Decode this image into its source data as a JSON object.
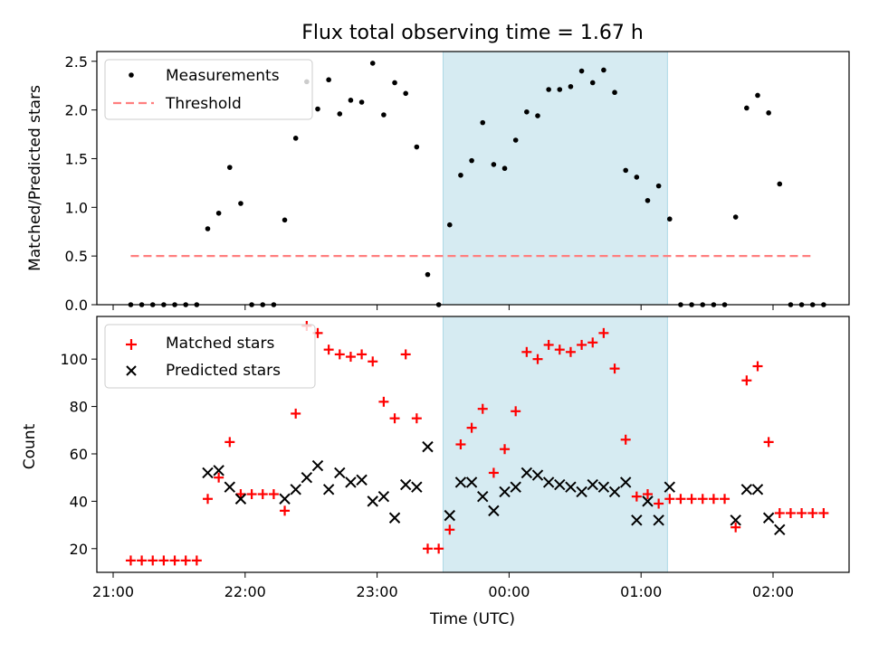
{
  "chart_data": [
    {
      "type": "scatter",
      "title": "Flux total observing time = 1.67 h",
      "xlabel": "",
      "ylabel": "Matched/Predicted stars",
      "ylim": [
        0,
        2.6
      ],
      "yticks": [
        "0.0",
        "0.5",
        "1.0",
        "1.5",
        "2.0",
        "2.5"
      ],
      "shaded_span": {
        "start": "23:30",
        "end": "01:12",
        "color": "#add8e6"
      },
      "legend": {
        "placement": "top-left",
        "entries": [
          "Measurements",
          "Threshold"
        ]
      },
      "threshold": {
        "name": "Threshold",
        "value": 0.5,
        "x_start": "21:08",
        "x_end": "02:17",
        "color": "#ff7f7f"
      },
      "series": [
        {
          "name": "Measurements",
          "color": "#000000",
          "marker": "dot",
          "points": [
            [
              "21:08",
              0
            ],
            [
              "21:13",
              0
            ],
            [
              "21:18",
              0
            ],
            [
              "21:23",
              0
            ],
            [
              "21:28",
              0
            ],
            [
              "21:33",
              0
            ],
            [
              "21:38",
              0
            ],
            [
              "21:43",
              0.78
            ],
            [
              "21:48",
              0.94
            ],
            [
              "21:53",
              1.41
            ],
            [
              "21:58",
              1.04
            ],
            [
              "22:03",
              0
            ],
            [
              "22:08",
              0
            ],
            [
              "22:13",
              0
            ],
            [
              "22:18",
              0.87
            ],
            [
              "22:23",
              1.71
            ],
            [
              "22:28",
              2.29
            ],
            [
              "22:33",
              2.01
            ],
            [
              "22:38",
              2.31
            ],
            [
              "22:43",
              1.96
            ],
            [
              "22:48",
              2.1
            ],
            [
              "22:53",
              2.08
            ],
            [
              "22:58",
              2.48
            ],
            [
              "23:03",
              1.95
            ],
            [
              "23:08",
              2.28
            ],
            [
              "23:13",
              2.17
            ],
            [
              "23:18",
              1.62
            ],
            [
              "23:23",
              0.31
            ],
            [
              "23:28",
              0
            ],
            [
              "23:33",
              0.82
            ],
            [
              "23:38",
              1.33
            ],
            [
              "23:43",
              1.48
            ],
            [
              "23:48",
              1.87
            ],
            [
              "23:53",
              1.44
            ],
            [
              "23:58",
              1.4
            ],
            [
              "00:03",
              1.69
            ],
            [
              "00:08",
              1.98
            ],
            [
              "00:13",
              1.94
            ],
            [
              "00:18",
              2.21
            ],
            [
              "00:23",
              2.21
            ],
            [
              "00:28",
              2.24
            ],
            [
              "00:33",
              2.4
            ],
            [
              "00:38",
              2.28
            ],
            [
              "00:43",
              2.41
            ],
            [
              "00:48",
              2.18
            ],
            [
              "00:53",
              1.38
            ],
            [
              "00:58",
              1.31
            ],
            [
              "01:03",
              1.07
            ],
            [
              "01:08",
              1.22
            ],
            [
              "01:13",
              0.88
            ],
            [
              "01:18",
              0
            ],
            [
              "01:23",
              0
            ],
            [
              "01:28",
              0
            ],
            [
              "01:33",
              0
            ],
            [
              "01:38",
              0
            ],
            [
              "01:43",
              0.9
            ],
            [
              "01:48",
              2.02
            ],
            [
              "01:53",
              2.15
            ],
            [
              "01:58",
              1.97
            ],
            [
              "02:03",
              1.24
            ],
            [
              "02:08",
              0
            ],
            [
              "02:13",
              0
            ],
            [
              "02:18",
              0
            ],
            [
              "02:23",
              0
            ]
          ]
        }
      ]
    },
    {
      "type": "scatter",
      "title": "",
      "xlabel": "Time (UTC)",
      "ylabel": "Count",
      "ylim": [
        10,
        118
      ],
      "yticks": [
        "20",
        "40",
        "60",
        "80",
        "100"
      ],
      "xticks": [
        "21:00",
        "22:00",
        "23:00",
        "00:00",
        "01:00",
        "02:00"
      ],
      "shaded_span": {
        "start": "23:30",
        "end": "01:12",
        "color": "#add8e6"
      },
      "legend": {
        "placement": "top-left",
        "entries": [
          "Matched stars",
          "Predicted stars"
        ]
      },
      "series": [
        {
          "name": "Matched stars",
          "color": "#ff0000",
          "marker": "plus",
          "points": [
            [
              "21:08",
              15
            ],
            [
              "21:13",
              15
            ],
            [
              "21:18",
              15
            ],
            [
              "21:23",
              15
            ],
            [
              "21:28",
              15
            ],
            [
              "21:33",
              15
            ],
            [
              "21:38",
              15
            ],
            [
              "21:43",
              41
            ],
            [
              "21:48",
              50
            ],
            [
              "21:53",
              65
            ],
            [
              "21:58",
              43
            ],
            [
              "22:03",
              43
            ],
            [
              "22:08",
              43
            ],
            [
              "22:13",
              43
            ],
            [
              "22:18",
              36
            ],
            [
              "22:23",
              77
            ],
            [
              "22:28",
              114
            ],
            [
              "22:33",
              111
            ],
            [
              "22:38",
              104
            ],
            [
              "22:43",
              102
            ],
            [
              "22:48",
              101
            ],
            [
              "22:53",
              102
            ],
            [
              "22:58",
              99
            ],
            [
              "23:03",
              82
            ],
            [
              "23:08",
              75
            ],
            [
              "23:13",
              102
            ],
            [
              "23:18",
              75
            ],
            [
              "23:23",
              20
            ],
            [
              "23:28",
              20
            ],
            [
              "23:33",
              28
            ],
            [
              "23:38",
              64
            ],
            [
              "23:43",
              71
            ],
            [
              "23:48",
              79
            ],
            [
              "23:53",
              52
            ],
            [
              "23:58",
              62
            ],
            [
              "00:03",
              78
            ],
            [
              "00:08",
              103
            ],
            [
              "00:13",
              100
            ],
            [
              "00:18",
              106
            ],
            [
              "00:23",
              104
            ],
            [
              "00:28",
              103
            ],
            [
              "00:33",
              106
            ],
            [
              "00:38",
              107
            ],
            [
              "00:43",
              111
            ],
            [
              "00:48",
              96
            ],
            [
              "00:53",
              66
            ],
            [
              "00:58",
              42
            ],
            [
              "01:03",
              43
            ],
            [
              "01:08",
              39
            ],
            [
              "01:13",
              41
            ],
            [
              "01:18",
              41
            ],
            [
              "01:23",
              41
            ],
            [
              "01:28",
              41
            ],
            [
              "01:33",
              41
            ],
            [
              "01:38",
              41
            ],
            [
              "01:43",
              29
            ],
            [
              "01:48",
              91
            ],
            [
              "01:53",
              97
            ],
            [
              "01:58",
              65
            ],
            [
              "02:03",
              35
            ],
            [
              "02:08",
              35
            ],
            [
              "02:13",
              35
            ],
            [
              "02:18",
              35
            ],
            [
              "02:23",
              35
            ]
          ]
        },
        {
          "name": "Predicted stars",
          "color": "#000000",
          "marker": "x",
          "points": [
            [
              "21:43",
              52
            ],
            [
              "21:48",
              53
            ],
            [
              "21:53",
              46
            ],
            [
              "21:58",
              41
            ],
            [
              "22:18",
              41
            ],
            [
              "22:23",
              45
            ],
            [
              "22:28",
              50
            ],
            [
              "22:33",
              55
            ],
            [
              "22:38",
              45
            ],
            [
              "22:43",
              52
            ],
            [
              "22:48",
              48
            ],
            [
              "22:53",
              49
            ],
            [
              "22:58",
              40
            ],
            [
              "23:03",
              42
            ],
            [
              "23:08",
              33
            ],
            [
              "23:13",
              47
            ],
            [
              "23:18",
              46
            ],
            [
              "23:23",
              63
            ],
            [
              "23:33",
              34
            ],
            [
              "23:38",
              48
            ],
            [
              "23:43",
              48
            ],
            [
              "23:48",
              42
            ],
            [
              "23:53",
              36
            ],
            [
              "23:58",
              44
            ],
            [
              "00:03",
              46
            ],
            [
              "00:08",
              52
            ],
            [
              "00:13",
              51
            ],
            [
              "00:18",
              48
            ],
            [
              "00:23",
              47
            ],
            [
              "00:28",
              46
            ],
            [
              "00:33",
              44
            ],
            [
              "00:38",
              47
            ],
            [
              "00:43",
              46
            ],
            [
              "00:48",
              44
            ],
            [
              "00:53",
              48
            ],
            [
              "00:58",
              32
            ],
            [
              "01:03",
              40
            ],
            [
              "01:08",
              32
            ],
            [
              "01:13",
              46
            ],
            [
              "01:43",
              32
            ],
            [
              "01:48",
              45
            ],
            [
              "01:53",
              45
            ],
            [
              "01:58",
              33
            ],
            [
              "02:03",
              28
            ]
          ]
        }
      ]
    }
  ]
}
